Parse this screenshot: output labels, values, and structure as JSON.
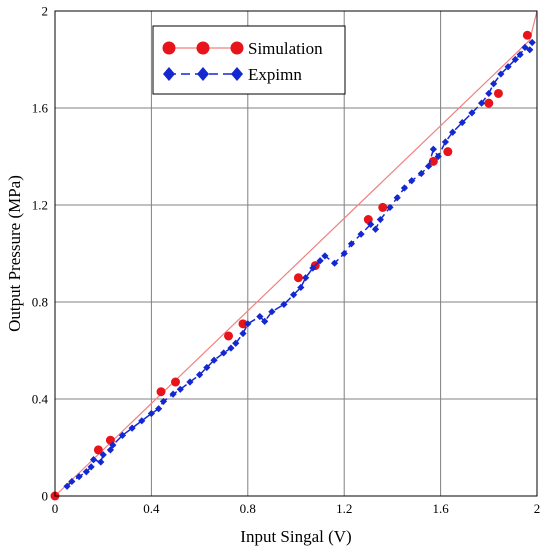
{
  "chart_data": {
    "type": "line",
    "title": "",
    "xlabel": "Input Singal (V)",
    "ylabel": "Output Pressure (MPa)",
    "xlim": [
      0,
      2
    ],
    "ylim": [
      0,
      2
    ],
    "x_ticks": [
      "0",
      "0.4",
      "0.8",
      "1.2",
      "1.6",
      "2"
    ],
    "y_ticks": [
      "0",
      "0.4",
      "0.8",
      "1.2",
      "1.6",
      "2"
    ],
    "grid": true,
    "legend_position": "top-left",
    "series": [
      {
        "name": "Simulation",
        "color": "#e8141c",
        "line_color": "#f08080",
        "marker": "circle",
        "line_style": "solid",
        "line_points": {
          "x": [
            0,
            1.97,
            2.0
          ],
          "y": [
            0,
            1.88,
            2.0
          ]
        },
        "points": {
          "x": [
            0.0,
            0.18,
            0.23,
            0.44,
            0.5,
            0.72,
            0.78,
            1.01,
            1.08,
            1.3,
            1.36,
            1.57,
            1.63,
            1.8,
            1.84,
            1.96
          ],
          "y": [
            0.0,
            0.19,
            0.23,
            0.43,
            0.47,
            0.66,
            0.71,
            0.9,
            0.95,
            1.14,
            1.19,
            1.38,
            1.42,
            1.62,
            1.66,
            1.9
          ]
        }
      },
      {
        "name": "Expimn",
        "color": "#1428d2",
        "marker": "diamond",
        "line_style": "dashed",
        "x": [
          0.05,
          0.07,
          0.1,
          0.13,
          0.15,
          0.16,
          0.19,
          0.2,
          0.23,
          0.24,
          0.28,
          0.32,
          0.36,
          0.4,
          0.43,
          0.45,
          0.49,
          0.52,
          0.56,
          0.6,
          0.63,
          0.66,
          0.7,
          0.73,
          0.75,
          0.78,
          0.8,
          0.85,
          0.87,
          0.9,
          0.95,
          0.99,
          1.02,
          1.04,
          1.07,
          1.1,
          1.12,
          1.16,
          1.2,
          1.23,
          1.27,
          1.31,
          1.33,
          1.35,
          1.39,
          1.42,
          1.45,
          1.48,
          1.52,
          1.55,
          1.57,
          1.59,
          1.62,
          1.65,
          1.69,
          1.73,
          1.77,
          1.8,
          1.82,
          1.85,
          1.88,
          1.91,
          1.93,
          1.95,
          1.97,
          1.98
        ],
        "y": [
          0.04,
          0.06,
          0.08,
          0.1,
          0.12,
          0.15,
          0.14,
          0.17,
          0.19,
          0.21,
          0.25,
          0.28,
          0.31,
          0.34,
          0.36,
          0.39,
          0.42,
          0.44,
          0.47,
          0.5,
          0.53,
          0.56,
          0.59,
          0.61,
          0.63,
          0.67,
          0.71,
          0.74,
          0.72,
          0.76,
          0.79,
          0.83,
          0.86,
          0.9,
          0.94,
          0.97,
          0.99,
          0.96,
          1.0,
          1.04,
          1.08,
          1.12,
          1.1,
          1.14,
          1.19,
          1.23,
          1.27,
          1.3,
          1.33,
          1.36,
          1.43,
          1.4,
          1.46,
          1.5,
          1.54,
          1.58,
          1.62,
          1.66,
          1.7,
          1.74,
          1.77,
          1.8,
          1.82,
          1.85,
          1.84,
          1.87
        ]
      }
    ]
  }
}
